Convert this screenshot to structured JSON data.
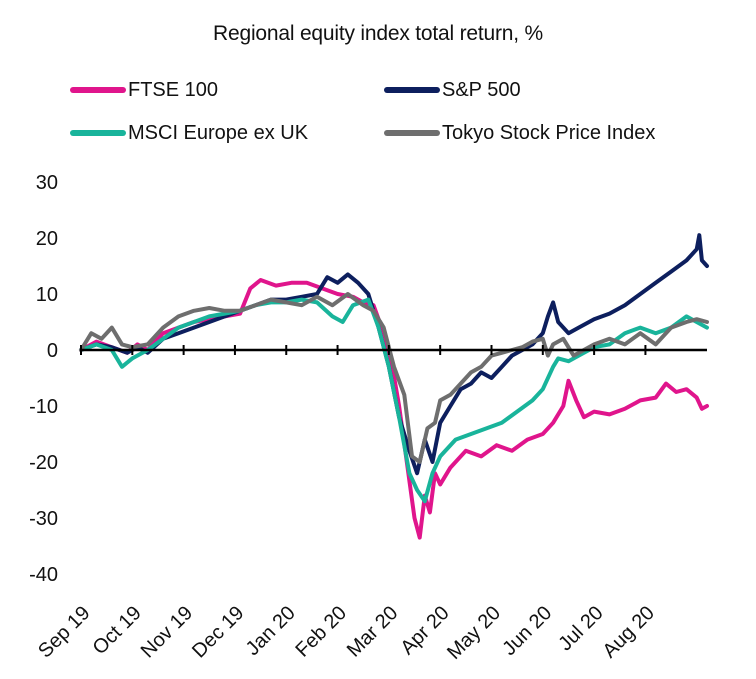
{
  "chart_data": {
    "type": "line",
    "title": "Regional equity index total return, %",
    "xlabel": "",
    "ylabel": "",
    "ylim": [
      -40,
      30
    ],
    "yticks": [
      30,
      20,
      10,
      0,
      -10,
      -20,
      -30,
      -40
    ],
    "grid": false,
    "legend_position": "top",
    "x_tick_labels": [
      "Sep 19",
      "Oct 19",
      "Nov 19",
      "Dec 19",
      "Jan 20",
      "Feb 20",
      "Mar 20",
      "Apr 20",
      "May 20",
      "Jun 20",
      "Jul 20",
      "Aug 20"
    ],
    "x_range": [
      0,
      12.2
    ],
    "series": [
      {
        "name": "FTSE 100",
        "color": "#e0158c",
        "points": [
          [
            0,
            0
          ],
          [
            0.3,
            1.5
          ],
          [
            0.6,
            0.5
          ],
          [
            0.9,
            -0.5
          ],
          [
            1.1,
            1
          ],
          [
            1.3,
            0
          ],
          [
            1.6,
            3
          ],
          [
            1.9,
            4
          ],
          [
            2.2,
            5
          ],
          [
            2.5,
            5.5
          ],
          [
            2.8,
            6
          ],
          [
            3.1,
            6.5
          ],
          [
            3.3,
            11
          ],
          [
            3.5,
            12.5
          ],
          [
            3.8,
            11.5
          ],
          [
            4.1,
            12
          ],
          [
            4.4,
            12
          ],
          [
            4.7,
            11
          ],
          [
            5.0,
            10
          ],
          [
            5.3,
            9.5
          ],
          [
            5.5,
            8.5
          ],
          [
            5.7,
            8
          ],
          [
            5.9,
            3
          ],
          [
            6.05,
            -2
          ],
          [
            6.2,
            -10
          ],
          [
            6.35,
            -20
          ],
          [
            6.5,
            -30
          ],
          [
            6.6,
            -33.5
          ],
          [
            6.7,
            -26
          ],
          [
            6.8,
            -29
          ],
          [
            6.9,
            -22
          ],
          [
            7.0,
            -24
          ],
          [
            7.2,
            -21
          ],
          [
            7.5,
            -18
          ],
          [
            7.8,
            -19
          ],
          [
            8.1,
            -17
          ],
          [
            8.4,
            -18
          ],
          [
            8.7,
            -16
          ],
          [
            9.0,
            -15
          ],
          [
            9.2,
            -13
          ],
          [
            9.4,
            -10
          ],
          [
            9.5,
            -5.5
          ],
          [
            9.65,
            -9
          ],
          [
            9.8,
            -12
          ],
          [
            10.0,
            -11
          ],
          [
            10.3,
            -11.5
          ],
          [
            10.6,
            -10.5
          ],
          [
            10.9,
            -9
          ],
          [
            11.2,
            -8.5
          ],
          [
            11.4,
            -6
          ],
          [
            11.6,
            -7.5
          ],
          [
            11.8,
            -7
          ],
          [
            12.0,
            -8.5
          ],
          [
            12.1,
            -10.5
          ],
          [
            12.2,
            -10
          ]
        ]
      },
      {
        "name": "S&P 500",
        "color": "#0d1f5e",
        "points": [
          [
            0,
            0
          ],
          [
            0.3,
            1
          ],
          [
            0.6,
            0.5
          ],
          [
            0.9,
            -0.5
          ],
          [
            1.1,
            0.5
          ],
          [
            1.3,
            -0.5
          ],
          [
            1.6,
            2
          ],
          [
            1.9,
            3
          ],
          [
            2.2,
            4
          ],
          [
            2.5,
            5
          ],
          [
            2.8,
            6
          ],
          [
            3.1,
            7
          ],
          [
            3.4,
            8
          ],
          [
            3.7,
            9
          ],
          [
            4.0,
            9
          ],
          [
            4.3,
            9.5
          ],
          [
            4.6,
            10
          ],
          [
            4.8,
            13
          ],
          [
            5.0,
            12
          ],
          [
            5.2,
            13.5
          ],
          [
            5.4,
            12
          ],
          [
            5.6,
            10
          ],
          [
            5.8,
            4
          ],
          [
            6.0,
            -3
          ],
          [
            6.2,
            -12
          ],
          [
            6.4,
            -18
          ],
          [
            6.55,
            -22
          ],
          [
            6.7,
            -16
          ],
          [
            6.85,
            -20
          ],
          [
            7.0,
            -13
          ],
          [
            7.2,
            -10
          ],
          [
            7.4,
            -7
          ],
          [
            7.6,
            -6
          ],
          [
            7.8,
            -4
          ],
          [
            8.0,
            -5
          ],
          [
            8.2,
            -3
          ],
          [
            8.4,
            -1
          ],
          [
            8.6,
            0
          ],
          [
            8.8,
            1
          ],
          [
            9.0,
            3
          ],
          [
            9.1,
            6
          ],
          [
            9.2,
            8.5
          ],
          [
            9.3,
            5
          ],
          [
            9.5,
            3
          ],
          [
            9.7,
            4
          ],
          [
            10.0,
            5.5
          ],
          [
            10.3,
            6.5
          ],
          [
            10.6,
            8
          ],
          [
            10.9,
            10
          ],
          [
            11.2,
            12
          ],
          [
            11.5,
            14
          ],
          [
            11.8,
            16
          ],
          [
            12.0,
            18
          ],
          [
            12.05,
            20.5
          ],
          [
            12.1,
            16
          ],
          [
            12.2,
            15
          ]
        ]
      },
      {
        "name": "MSCI Europe ex UK",
        "color": "#19b49b",
        "points": [
          [
            0,
            0
          ],
          [
            0.3,
            1
          ],
          [
            0.6,
            0
          ],
          [
            0.8,
            -3
          ],
          [
            1.0,
            -1.5
          ],
          [
            1.3,
            0
          ],
          [
            1.6,
            2
          ],
          [
            1.9,
            4
          ],
          [
            2.2,
            5
          ],
          [
            2.5,
            6
          ],
          [
            2.8,
            6.5
          ],
          [
            3.1,
            7
          ],
          [
            3.4,
            8
          ],
          [
            3.7,
            8.5
          ],
          [
            4.0,
            8.5
          ],
          [
            4.3,
            9
          ],
          [
            4.6,
            8.5
          ],
          [
            4.9,
            6
          ],
          [
            5.1,
            5
          ],
          [
            5.3,
            8
          ],
          [
            5.6,
            9
          ],
          [
            5.8,
            4
          ],
          [
            6.0,
            -3
          ],
          [
            6.2,
            -12
          ],
          [
            6.4,
            -22
          ],
          [
            6.55,
            -25
          ],
          [
            6.7,
            -27
          ],
          [
            6.85,
            -22
          ],
          [
            7.0,
            -19
          ],
          [
            7.3,
            -16
          ],
          [
            7.6,
            -15
          ],
          [
            7.9,
            -14
          ],
          [
            8.2,
            -13
          ],
          [
            8.5,
            -11
          ],
          [
            8.8,
            -9
          ],
          [
            9.0,
            -7
          ],
          [
            9.2,
            -3
          ],
          [
            9.3,
            -1.5
          ],
          [
            9.5,
            -2
          ],
          [
            9.7,
            -1
          ],
          [
            10.0,
            0.5
          ],
          [
            10.3,
            1
          ],
          [
            10.6,
            3
          ],
          [
            10.9,
            4
          ],
          [
            11.2,
            3
          ],
          [
            11.5,
            4
          ],
          [
            11.8,
            6
          ],
          [
            12.0,
            5
          ],
          [
            12.2,
            4
          ]
        ]
      },
      {
        "name": "Tokyo Stock Price Index",
        "color": "#6e6e6e",
        "points": [
          [
            0,
            0
          ],
          [
            0.2,
            3
          ],
          [
            0.4,
            2
          ],
          [
            0.6,
            4
          ],
          [
            0.8,
            1
          ],
          [
            1.0,
            0.5
          ],
          [
            1.3,
            1
          ],
          [
            1.6,
            4
          ],
          [
            1.9,
            6
          ],
          [
            2.2,
            7
          ],
          [
            2.5,
            7.5
          ],
          [
            2.8,
            7
          ],
          [
            3.1,
            7
          ],
          [
            3.4,
            8
          ],
          [
            3.7,
            9
          ],
          [
            4.0,
            8.5
          ],
          [
            4.3,
            8
          ],
          [
            4.6,
            9.5
          ],
          [
            4.9,
            8
          ],
          [
            5.2,
            10
          ],
          [
            5.5,
            8
          ],
          [
            5.7,
            7
          ],
          [
            5.9,
            4
          ],
          [
            6.1,
            -3
          ],
          [
            6.3,
            -8
          ],
          [
            6.45,
            -19
          ],
          [
            6.6,
            -20
          ],
          [
            6.75,
            -14
          ],
          [
            6.9,
            -13
          ],
          [
            7.0,
            -9
          ],
          [
            7.2,
            -8
          ],
          [
            7.4,
            -6
          ],
          [
            7.6,
            -4
          ],
          [
            7.8,
            -3
          ],
          [
            8.0,
            -1
          ],
          [
            8.2,
            -0.5
          ],
          [
            8.4,
            0
          ],
          [
            8.6,
            0.5
          ],
          [
            8.8,
            1.5
          ],
          [
            9.0,
            2
          ],
          [
            9.1,
            -1
          ],
          [
            9.2,
            1
          ],
          [
            9.4,
            2
          ],
          [
            9.6,
            -1
          ],
          [
            9.8,
            0
          ],
          [
            10.0,
            1
          ],
          [
            10.3,
            2
          ],
          [
            10.6,
            1
          ],
          [
            10.9,
            3
          ],
          [
            11.2,
            1
          ],
          [
            11.5,
            4
          ],
          [
            11.8,
            5
          ],
          [
            12.0,
            5.5
          ],
          [
            12.2,
            5
          ]
        ]
      }
    ]
  }
}
